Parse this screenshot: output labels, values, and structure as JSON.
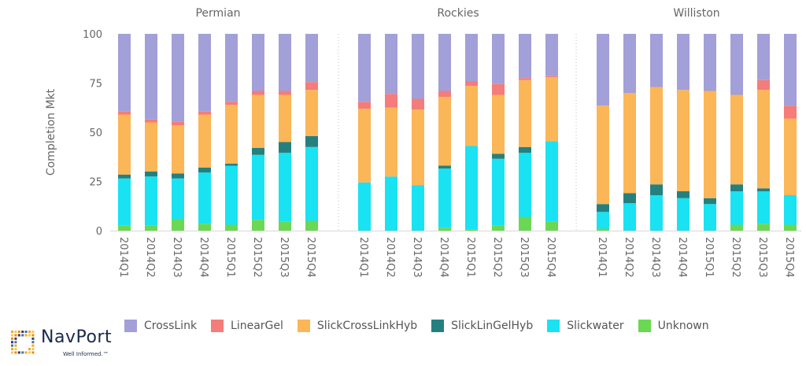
{
  "chart_data": {
    "type": "bar",
    "stacked": true,
    "ylabel": "Completion Mkt",
    "ylim": [
      0,
      100
    ],
    "yticks": [
      0,
      25,
      50,
      75,
      100
    ],
    "categories": [
      "2014Q1",
      "2014Q2",
      "2014Q3",
      "2014Q4",
      "2015Q1",
      "2015Q2",
      "2015Q3",
      "2015Q4"
    ],
    "series_order": [
      "Unknown",
      "Slickwater",
      "SlickLinGelHyb",
      "SlickCrossLinkHyb",
      "LinearGel",
      "CrossLink"
    ],
    "legend_order": [
      "CrossLink",
      "LinearGel",
      "SlickCrossLinkHyb",
      "SlickLinGelHyb",
      "Slickwater",
      "Unknown"
    ],
    "colors": {
      "CrossLink": "#a39fd8",
      "LinearGel": "#f47c7a",
      "SlickCrossLinkHyb": "#fbb657",
      "SlickLinGelHyb": "#24807f",
      "Slickwater": "#19e2f2",
      "Unknown": "#6bd853"
    },
    "panels": [
      {
        "title": "Permian",
        "series": {
          "Unknown": [
            2.5,
            2.5,
            6,
            3.5,
            3,
            5.5,
            4.5,
            5
          ],
          "Slickwater": [
            24,
            25,
            20.5,
            26,
            30,
            33,
            35,
            37.5
          ],
          "SlickLinGelHyb": [
            2,
            2.5,
            2.5,
            2.5,
            1,
            3.5,
            5.5,
            5.5
          ],
          "SlickCrossLinkHyb": [
            30.5,
            25,
            24.5,
            27,
            30,
            27,
            24,
            23.5
          ],
          "LinearGel": [
            1.5,
            1.5,
            2,
            1.5,
            1.5,
            2,
            2,
            4
          ],
          "CrossLink": [
            39.5,
            43.5,
            44.5,
            39.5,
            34.5,
            29,
            29,
            24.5
          ]
        }
      },
      {
        "title": "Rockies",
        "series": {
          "Unknown": [
            0,
            0,
            0,
            1.5,
            0.5,
            2.5,
            7,
            4.5
          ],
          "Slickwater": [
            24.5,
            27.5,
            23,
            30,
            42.5,
            34,
            32.5,
            41
          ],
          "SlickLinGelHyb": [
            0,
            0,
            0,
            1.5,
            0,
            2.5,
            3,
            0
          ],
          "SlickCrossLinkHyb": [
            37.5,
            35,
            38.5,
            35,
            30.5,
            30,
            34,
            32.5
          ],
          "LinearGel": [
            3.5,
            7,
            5.5,
            3,
            2.5,
            5.5,
            1,
            0.5
          ],
          "CrossLink": [
            34.5,
            30.5,
            33,
            29,
            24,
            25.5,
            22.5,
            21.5
          ]
        }
      },
      {
        "title": "Williston",
        "series": {
          "Unknown": [
            1,
            0,
            0,
            0,
            0,
            3,
            3.5,
            3
          ],
          "Slickwater": [
            8.5,
            14,
            18,
            16.5,
            13.5,
            17,
            16.5,
            15
          ],
          "SlickLinGelHyb": [
            4,
            5,
            5.5,
            3.5,
            3,
            3.5,
            1.5,
            0
          ],
          "SlickCrossLinkHyb": [
            50,
            51,
            49.5,
            51.5,
            54.5,
            45.5,
            50,
            39
          ],
          "LinearGel": [
            0,
            0,
            0,
            0,
            0,
            0,
            5,
            6.5
          ],
          "CrossLink": [
            36.5,
            30,
            27,
            28.5,
            29,
            31,
            23.5,
            36.5
          ]
        }
      }
    ]
  },
  "logo": {
    "name": "NavPort",
    "tagline": "Well Informed.™"
  }
}
